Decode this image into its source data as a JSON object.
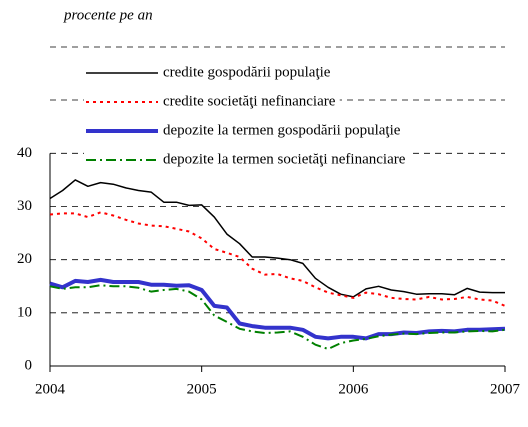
{
  "chart_data": {
    "type": "line",
    "subtitle": "procente pe an",
    "xlim": [
      0,
      36
    ],
    "xticks": [
      {
        "value": 0,
        "label": "2004"
      },
      {
        "value": 12,
        "label": "2005"
      },
      {
        "value": 24,
        "label": "2006"
      },
      {
        "value": 36,
        "label": "2007"
      }
    ],
    "ylim": [
      0,
      60
    ],
    "yticks": [
      0,
      10,
      20,
      30,
      40
    ],
    "grid": true,
    "legend": "top",
    "series": [
      {
        "name": "credite gospodării populaţie",
        "color": "#000000",
        "style": "solid",
        "width": 1.5,
        "values": [
          31.5,
          33,
          35,
          33.8,
          34.5,
          34.2,
          33.5,
          33,
          32.7,
          30.8,
          30.8,
          30.2,
          30.3,
          28,
          24.8,
          23,
          20.5,
          20.5,
          20.3,
          20,
          19.3,
          16.5,
          14.8,
          13.5,
          13,
          14.5,
          15,
          14.3,
          14,
          13.5,
          13.6,
          13.6,
          13.4,
          14.6,
          13.9,
          13.8,
          13.8
        ]
      },
      {
        "name": "credite societăţi nefinanciare",
        "color": "#ff0000",
        "style": "dotted",
        "width": 2,
        "values": [
          28.5,
          28.7,
          28.7,
          28,
          28.9,
          28.3,
          27.5,
          26.8,
          26.4,
          26.3,
          25.8,
          25.3,
          24,
          22,
          21.3,
          20.5,
          18.3,
          17.2,
          17.3,
          16.5,
          16,
          14.8,
          13.8,
          13.3,
          12.8,
          13.8,
          13.5,
          12.8,
          12.6,
          12.5,
          13,
          12.5,
          12.6,
          13,
          12.5,
          12.3,
          11.3
        ]
      },
      {
        "name": "depozite la termen gospodării populaţie",
        "color": "#3333cc",
        "style": "solid",
        "width": 4,
        "values": [
          15.5,
          14.8,
          16,
          15.8,
          16.2,
          15.8,
          15.8,
          15.8,
          15.3,
          15.3,
          15.1,
          15.2,
          14.3,
          11.3,
          11,
          8,
          7.5,
          7.2,
          7.2,
          7.2,
          6.8,
          5.5,
          5.2,
          5.5,
          5.5,
          5.2,
          6,
          6,
          6.3,
          6.2,
          6.5,
          6.6,
          6.5,
          6.8,
          6.8,
          6.9,
          7
        ]
      },
      {
        "name": "depozite la termen societăţi nefinanciare",
        "color": "#008000",
        "style": "dashdot",
        "width": 2,
        "values": [
          15,
          14.5,
          14.8,
          14.8,
          15.2,
          15,
          15,
          14.7,
          14,
          14.3,
          14.5,
          14,
          12.5,
          9.5,
          8.3,
          7,
          6.5,
          6.2,
          6.3,
          6.5,
          5.5,
          4,
          3.2,
          4.3,
          4.8,
          5.1,
          5.6,
          5.9,
          6.1,
          6,
          6.2,
          6.3,
          6.3,
          6.5,
          6.6,
          6.5,
          6.8
        ]
      }
    ]
  }
}
